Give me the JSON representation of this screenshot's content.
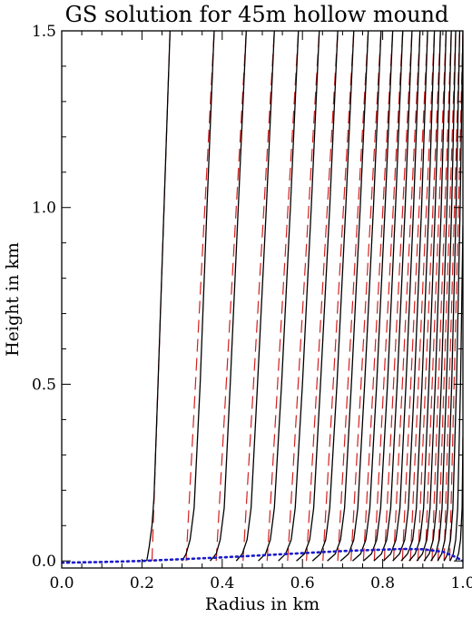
{
  "chart_data": {
    "type": "line",
    "title": "GS solution for 45m hollow mound",
    "xlabel": "Radius in km",
    "ylabel": "Height in km",
    "xlim": [
      0.0,
      1.0
    ],
    "ylim": [
      -0.02,
      1.5
    ],
    "xticks": [
      {
        "value": 0.0,
        "label": "0.0"
      },
      {
        "value": 0.2,
        "label": "0.2"
      },
      {
        "value": 0.4,
        "label": "0.4"
      },
      {
        "value": 0.6,
        "label": "0.6"
      },
      {
        "value": 0.8,
        "label": "0.8"
      },
      {
        "value": 1.0,
        "label": "1.0"
      }
    ],
    "yticks": [
      {
        "value": 0.0,
        "label": "0.0"
      },
      {
        "value": 0.5,
        "label": "0.5"
      },
      {
        "value": 1.0,
        "label": "1.0"
      },
      {
        "value": 1.5,
        "label": "1.5"
      }
    ],
    "grid": false,
    "legend": "none",
    "colors": {
      "solution": "#000000",
      "reference": "#d42020",
      "mound": "#1a1acc"
    },
    "series": [
      {
        "style": "solid-black",
        "lines": [
          {
            "x": [
              0.212,
              0.218,
              0.225,
              0.23,
              0.24,
              0.255,
              0.27
            ],
            "y": [
              0.0,
              0.04,
              0.1,
              0.18,
              0.5,
              1.0,
              1.5
            ]
          },
          {
            "x": [
              0.3,
              0.31,
              0.32,
              0.33,
              0.345,
              0.362,
              0.38
            ],
            "y": [
              0.0,
              0.02,
              0.06,
              0.15,
              0.5,
              1.0,
              1.5
            ]
          },
          {
            "x": [
              0.37,
              0.385,
              0.395,
              0.405,
              0.42,
              0.44,
              0.46
            ],
            "y": [
              0.0,
              0.02,
              0.06,
              0.15,
              0.5,
              1.0,
              1.5
            ]
          },
          {
            "x": [
              0.435,
              0.45,
              0.462,
              0.472,
              0.488,
              0.51,
              0.53
            ],
            "y": [
              0.0,
              0.02,
              0.06,
              0.15,
              0.5,
              1.0,
              1.5
            ]
          },
          {
            "x": [
              0.49,
              0.508,
              0.52,
              0.53,
              0.548,
              0.57,
              0.59
            ],
            "y": [
              0.0,
              0.02,
              0.06,
              0.15,
              0.5,
              1.0,
              1.5
            ]
          },
          {
            "x": [
              0.54,
              0.558,
              0.572,
              0.582,
              0.6,
              0.622,
              0.642
            ],
            "y": [
              0.0,
              0.02,
              0.06,
              0.15,
              0.5,
              1.0,
              1.5
            ]
          },
          {
            "x": [
              0.585,
              0.605,
              0.618,
              0.628,
              0.645,
              0.668,
              0.688
            ],
            "y": [
              0.0,
              0.02,
              0.06,
              0.15,
              0.5,
              1.0,
              1.5
            ]
          },
          {
            "x": [
              0.625,
              0.645,
              0.658,
              0.668,
              0.686,
              0.708,
              0.728
            ],
            "y": [
              0.0,
              0.02,
              0.06,
              0.15,
              0.5,
              1.0,
              1.5
            ]
          },
          {
            "x": [
              0.662,
              0.682,
              0.695,
              0.705,
              0.722,
              0.744,
              0.764
            ],
            "y": [
              0.0,
              0.02,
              0.06,
              0.15,
              0.5,
              1.0,
              1.5
            ]
          },
          {
            "x": [
              0.695,
              0.715,
              0.728,
              0.738,
              0.755,
              0.777,
              0.796
            ],
            "y": [
              0.0,
              0.02,
              0.06,
              0.15,
              0.5,
              1.0,
              1.5
            ]
          },
          {
            "x": [
              0.725,
              0.745,
              0.758,
              0.768,
              0.785,
              0.806,
              0.825
            ],
            "y": [
              0.0,
              0.02,
              0.06,
              0.15,
              0.5,
              1.0,
              1.5
            ]
          },
          {
            "x": [
              0.752,
              0.772,
              0.785,
              0.795,
              0.812,
              0.832,
              0.85
            ],
            "y": [
              0.0,
              0.02,
              0.06,
              0.15,
              0.5,
              1.0,
              1.5
            ]
          },
          {
            "x": [
              0.778,
              0.797,
              0.81,
              0.82,
              0.836,
              0.856,
              0.873
            ],
            "y": [
              0.0,
              0.02,
              0.06,
              0.15,
              0.5,
              1.0,
              1.5
            ]
          },
          {
            "x": [
              0.802,
              0.82,
              0.833,
              0.843,
              0.858,
              0.877,
              0.893
            ],
            "y": [
              0.0,
              0.02,
              0.06,
              0.15,
              0.5,
              1.0,
              1.5
            ]
          },
          {
            "x": [
              0.825,
              0.842,
              0.855,
              0.864,
              0.879,
              0.897,
              0.912
            ],
            "y": [
              0.0,
              0.02,
              0.06,
              0.15,
              0.5,
              1.0,
              1.5
            ]
          },
          {
            "x": [
              0.846,
              0.862,
              0.875,
              0.884,
              0.898,
              0.915,
              0.929
            ],
            "y": [
              0.0,
              0.02,
              0.06,
              0.15,
              0.5,
              1.0,
              1.5
            ]
          },
          {
            "x": [
              0.866,
              0.881,
              0.893,
              0.902,
              0.915,
              0.931,
              0.944
            ],
            "y": [
              0.0,
              0.02,
              0.06,
              0.15,
              0.5,
              1.0,
              1.5
            ]
          },
          {
            "x": [
              0.885,
              0.899,
              0.91,
              0.918,
              0.931,
              0.946,
              0.958
            ],
            "y": [
              0.0,
              0.02,
              0.06,
              0.15,
              0.5,
              1.0,
              1.5
            ]
          },
          {
            "x": [
              0.903,
              0.916,
              0.926,
              0.934,
              0.946,
              0.96,
              0.971
            ],
            "y": [
              0.0,
              0.02,
              0.06,
              0.15,
              0.5,
              1.0,
              1.5
            ]
          },
          {
            "x": [
              0.92,
              0.932,
              0.941,
              0.948,
              0.959,
              0.972,
              0.982
            ],
            "y": [
              0.0,
              0.02,
              0.06,
              0.15,
              0.5,
              1.0,
              1.5
            ]
          },
          {
            "x": [
              0.937,
              0.947,
              0.955,
              0.962,
              0.972,
              0.983,
              0.992
            ],
            "y": [
              0.0,
              0.02,
              0.06,
              0.15,
              0.5,
              1.0,
              1.5
            ]
          },
          {
            "x": [
              0.953,
              0.962,
              0.969,
              0.975,
              0.984,
              0.993,
              1.0
            ],
            "y": [
              0.0,
              0.02,
              0.06,
              0.15,
              0.5,
              1.0,
              1.5
            ]
          },
          {
            "x": [
              0.968,
              0.976,
              0.982,
              0.987,
              0.994,
              1.0
            ],
            "y": [
              0.0,
              0.02,
              0.06,
              0.15,
              0.5,
              0.95
            ]
          },
          {
            "x": [
              0.982,
              0.989,
              0.994,
              0.998,
              1.0
            ],
            "y": [
              0.0,
              0.02,
              0.06,
              0.15,
              0.35
            ]
          }
        ]
      },
      {
        "style": "dashed-red",
        "lines": [
          {
            "x": [
              0.225,
              0.27
            ],
            "y": [
              0.0,
              1.5
            ]
          },
          {
            "x": [
              0.31,
              0.38
            ],
            "y": [
              0.0,
              1.5
            ]
          },
          {
            "x": [
              0.385,
              0.46
            ],
            "y": [
              0.0,
              1.5
            ]
          },
          {
            "x": [
              0.452,
              0.53
            ],
            "y": [
              0.0,
              1.5
            ]
          },
          {
            "x": [
              0.512,
              0.59
            ],
            "y": [
              0.0,
              1.5
            ]
          },
          {
            "x": [
              0.563,
              0.642
            ],
            "y": [
              0.0,
              1.5
            ]
          },
          {
            "x": [
              0.61,
              0.688
            ],
            "y": [
              0.0,
              1.5
            ]
          },
          {
            "x": [
              0.651,
              0.728
            ],
            "y": [
              0.0,
              1.5
            ]
          },
          {
            "x": [
              0.688,
              0.764
            ],
            "y": [
              0.0,
              1.5
            ]
          },
          {
            "x": [
              0.721,
              0.796
            ],
            "y": [
              0.0,
              1.5
            ]
          },
          {
            "x": [
              0.752,
              0.825
            ],
            "y": [
              0.0,
              1.5
            ]
          },
          {
            "x": [
              0.779,
              0.85
            ],
            "y": [
              0.0,
              1.5
            ]
          },
          {
            "x": [
              0.804,
              0.873
            ],
            "y": [
              0.0,
              1.5
            ]
          },
          {
            "x": [
              0.827,
              0.893
            ],
            "y": [
              0.0,
              1.5
            ]
          },
          {
            "x": [
              0.849,
              0.912
            ],
            "y": [
              0.0,
              1.5
            ]
          },
          {
            "x": [
              0.869,
              0.929
            ],
            "y": [
              0.0,
              1.5
            ]
          },
          {
            "x": [
              0.888,
              0.944
            ],
            "y": [
              0.0,
              1.5
            ]
          },
          {
            "x": [
              0.906,
              0.958
            ],
            "y": [
              0.0,
              1.5
            ]
          },
          {
            "x": [
              0.923,
              0.971
            ],
            "y": [
              0.0,
              1.5
            ]
          },
          {
            "x": [
              0.938,
              0.982
            ],
            "y": [
              0.0,
              1.5
            ]
          },
          {
            "x": [
              0.953,
              0.992
            ],
            "y": [
              0.0,
              1.5
            ]
          },
          {
            "x": [
              0.967,
              1.0
            ],
            "y": [
              0.0,
              1.5
            ]
          }
        ]
      },
      {
        "style": "dotted-blue",
        "lines": [
          {
            "x": [
              0.0,
              0.1,
              0.2,
              0.3,
              0.4,
              0.5,
              0.6,
              0.7,
              0.8,
              0.85,
              0.9,
              0.95,
              0.98,
              1.0
            ],
            "y": [
              -0.005,
              -0.003,
              0.0,
              0.005,
              0.01,
              0.016,
              0.022,
              0.028,
              0.032,
              0.034,
              0.033,
              0.026,
              0.012,
              0.0
            ]
          }
        ]
      }
    ]
  }
}
